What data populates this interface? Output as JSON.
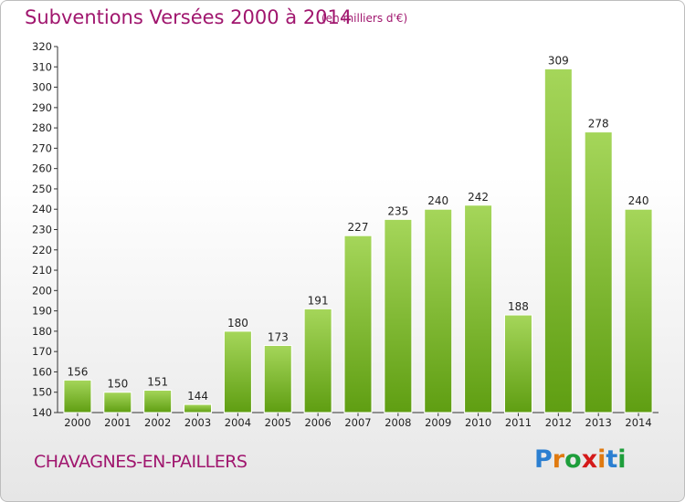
{
  "header": {
    "title": "Subventions Versées 2000 à 2014",
    "unit": "(en milliers d'€)"
  },
  "footer": {
    "commune": "CHAVAGNES-EN-PAILLERS",
    "brand": "Proxiti"
  },
  "colors": {
    "title": "#a0166e",
    "bar_light": "#a5d65a",
    "bar_dark": "#5f9e12"
  },
  "chart_data": {
    "type": "bar",
    "categories": [
      "2000",
      "2001",
      "2002",
      "2003",
      "2004",
      "2005",
      "2006",
      "2007",
      "2008",
      "2009",
      "2010",
      "2011",
      "2012",
      "2013",
      "2014"
    ],
    "values": [
      156,
      150,
      151,
      144,
      180,
      173,
      191,
      227,
      235,
      240,
      242,
      188,
      309,
      278,
      240
    ],
    "title": "Subventions Versées 2000 à 2014",
    "subtitle": "(en milliers d'€)",
    "xlabel": "",
    "ylabel": "",
    "ylim": [
      140,
      320
    ],
    "yticks": [
      140,
      150,
      160,
      170,
      180,
      190,
      200,
      210,
      220,
      230,
      240,
      250,
      260,
      270,
      280,
      290,
      300,
      310,
      320
    ],
    "grid": false,
    "data_labels": true
  }
}
